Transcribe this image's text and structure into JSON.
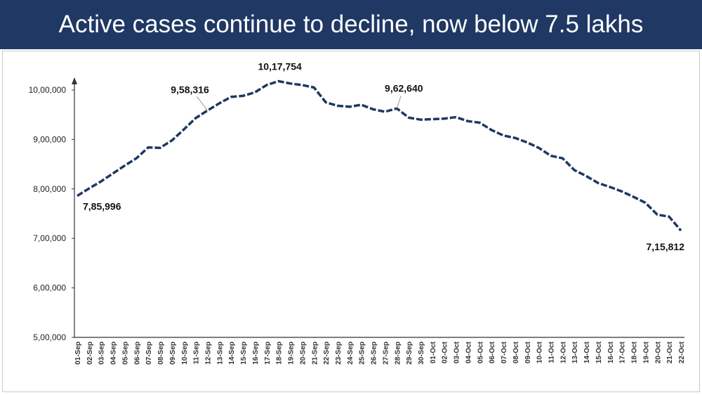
{
  "chart_data": {
    "type": "line",
    "title": "Active cases continue to decline, now below 7.5 lakhs",
    "categories": [
      "01-Sep",
      "02-Sep",
      "03-Sep",
      "04-Sep",
      "05-Sep",
      "06-Sep",
      "07-Sep",
      "08-Sep",
      "09-Sep",
      "10-Sep",
      "11-Sep",
      "12-Sep",
      "13-Sep",
      "14-Sep",
      "15-Sep",
      "16-Sep",
      "17-Sep",
      "18-Sep",
      "19-Sep",
      "20-Sep",
      "21-Sep",
      "22-Sep",
      "23-Sep",
      "24-Sep",
      "25-Sep",
      "26-Sep",
      "27-Sep",
      "28-Sep",
      "29-Sep",
      "30-Sep",
      "01-Oct",
      "02-Oct",
      "03-Oct",
      "04-Oct",
      "05-Oct",
      "06-Oct",
      "07-Oct",
      "08-Oct",
      "09-Oct",
      "10-Oct",
      "11-Oct",
      "12-Oct",
      "13-Oct",
      "14-Oct",
      "15-Oct",
      "16-Oct",
      "17-Oct",
      "18-Oct",
      "19-Oct",
      "20-Oct",
      "21-Oct",
      "22-Oct"
    ],
    "values": [
      785996,
      801000,
      815000,
      831000,
      847000,
      862000,
      884000,
      883000,
      898000,
      920000,
      943000,
      958316,
      973000,
      986000,
      988000,
      995000,
      1010000,
      1017754,
      1013000,
      1010000,
      1005000,
      975000,
      968000,
      966000,
      970000,
      961000,
      956000,
      962640,
      944000,
      940000,
      941000,
      942000,
      945000,
      937000,
      934000,
      919000,
      908000,
      903000,
      894000,
      883000,
      867000,
      862000,
      838000,
      826000,
      812000,
      804000,
      795000,
      784000,
      772000,
      748000,
      744000,
      715812
    ],
    "value_labels": [
      "7,85,996",
      null,
      null,
      null,
      null,
      null,
      null,
      null,
      null,
      null,
      null,
      "9,58,316",
      null,
      null,
      null,
      null,
      null,
      "10,17,754",
      null,
      null,
      null,
      null,
      null,
      null,
      null,
      null,
      null,
      "9,62,640",
      null,
      null,
      null,
      null,
      null,
      null,
      null,
      null,
      null,
      null,
      null,
      null,
      null,
      null,
      null,
      null,
      null,
      null,
      null,
      null,
      null,
      null,
      null,
      "7,15,812"
    ],
    "color": "#1f3864",
    "ylim": [
      500000,
      1000000
    ],
    "yticks": [
      {
        "value": 500000,
        "label": "5,00,000"
      },
      {
        "value": 600000,
        "label": "6,00,000"
      },
      {
        "value": 700000,
        "label": "7,00,000"
      },
      {
        "value": 800000,
        "label": "8,00,000"
      },
      {
        "value": 900000,
        "label": "9,00,000"
      },
      {
        "value": 1000000,
        "label": "10,00,000"
      }
    ]
  }
}
